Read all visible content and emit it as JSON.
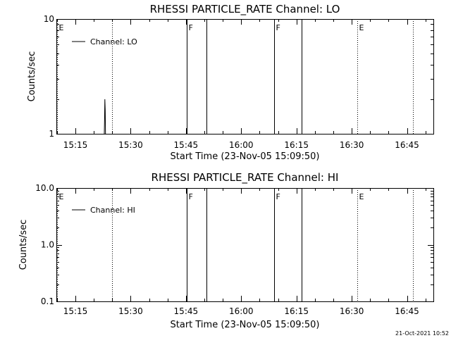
{
  "chart_data": [
    {
      "type": "line",
      "title": "RHESSI PARTICLE_RATE Channel: LO",
      "xlabel": "Start Time (23-Nov-05 15:09:50)",
      "ylabel": "Counts/sec",
      "y_scale": "log",
      "ylim": [
        1,
        10
      ],
      "y_ticks": [
        {
          "value": 10,
          "label": "10"
        },
        {
          "value": 1,
          "label": "1"
        }
      ],
      "xlim": [
        "15:09:50",
        "16:52:10"
      ],
      "x_ticks": [
        "15:15",
        "15:30",
        "15:45",
        "16:00",
        "16:15",
        "16:30",
        "16:45"
      ],
      "series": [
        {
          "name": "Channel: LO",
          "color": "#000000",
          "points": [
            {
              "x": "15:22:50",
              "y": 1.0
            },
            {
              "x": "15:22:55",
              "y": 1.35
            },
            {
              "x": "15:23:00",
              "y": 2.0
            },
            {
              "x": "15:23:05",
              "y": 1.6
            },
            {
              "x": "15:23:10",
              "y": 1.0
            }
          ]
        }
      ],
      "flags": [
        {
          "time": "15:10:00",
          "label": "E",
          "style": "dotted"
        },
        {
          "time": "15:25:00",
          "label": "",
          "style": "dotted"
        },
        {
          "time": "15:45:15",
          "label": "F",
          "style": "solid"
        },
        {
          "time": "15:50:40",
          "label": "",
          "style": "solid"
        },
        {
          "time": "16:09:00",
          "label": "F",
          "style": "solid"
        },
        {
          "time": "16:16:20",
          "label": "",
          "style": "solid"
        },
        {
          "time": "16:31:30",
          "label": "E",
          "style": "dotted"
        },
        {
          "time": "16:46:40",
          "label": "",
          "style": "dotted"
        }
      ],
      "legend": {
        "position": "top-left",
        "label": "Channel: LO"
      }
    },
    {
      "type": "line",
      "title": "RHESSI PARTICLE_RATE Channel: HI",
      "xlabel": "Start Time (23-Nov-05 15:09:50)",
      "ylabel": "Counts/sec",
      "y_scale": "log",
      "ylim": [
        0.1,
        10
      ],
      "y_ticks": [
        {
          "value": 10,
          "label": "10.0"
        },
        {
          "value": 1,
          "label": "1.0"
        },
        {
          "value": 0.1,
          "label": "0.1"
        }
      ],
      "xlim": [
        "15:09:50",
        "16:52:10"
      ],
      "x_ticks": [
        "15:15",
        "15:30",
        "15:45",
        "16:00",
        "16:15",
        "16:30",
        "16:45"
      ],
      "series": [
        {
          "name": "Channel: HI",
          "color": "#000000",
          "points": []
        }
      ],
      "flags": [
        {
          "time": "15:10:00",
          "label": "E",
          "style": "dotted"
        },
        {
          "time": "15:25:00",
          "label": "",
          "style": "dotted"
        },
        {
          "time": "15:45:15",
          "label": "F",
          "style": "solid"
        },
        {
          "time": "15:50:40",
          "label": "",
          "style": "solid"
        },
        {
          "time": "16:09:00",
          "label": "F",
          "style": "solid"
        },
        {
          "time": "16:16:20",
          "label": "",
          "style": "solid"
        },
        {
          "time": "16:31:30",
          "label": "E",
          "style": "dotted"
        },
        {
          "time": "16:46:40",
          "label": "",
          "style": "dotted"
        }
      ],
      "legend": {
        "position": "top-left",
        "label": "Channel: HI"
      }
    }
  ],
  "timestamp": "21-Oct-2021 10:52"
}
